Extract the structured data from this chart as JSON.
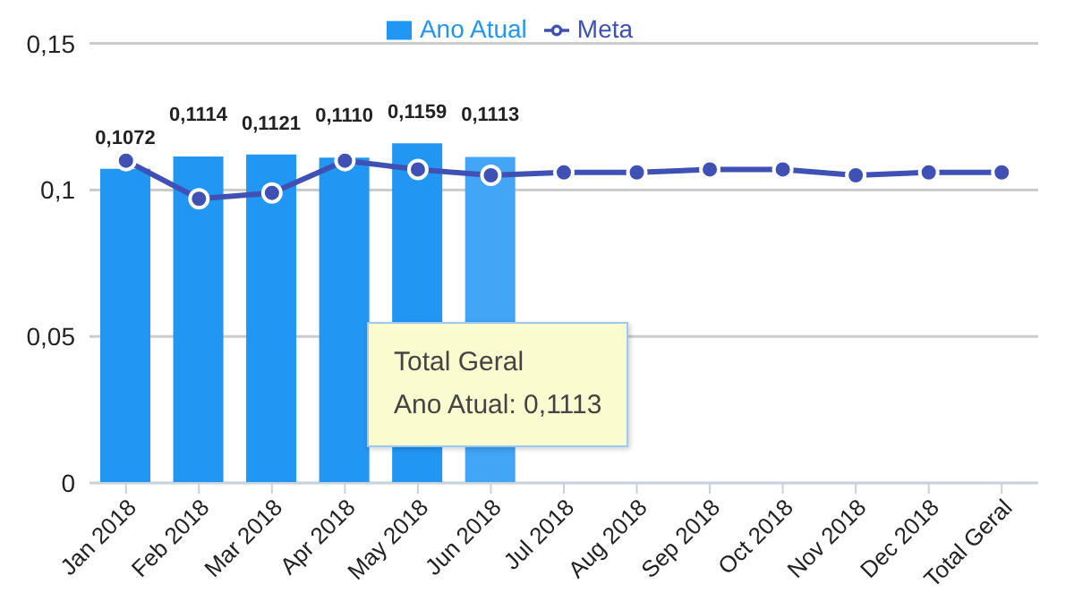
{
  "chart_data": {
    "type": "bar",
    "categories": [
      "Jan 2018",
      "Feb 2018",
      "Mar 2018",
      "Apr 2018",
      "May 2018",
      "Jun 2018",
      "Jul 2018",
      "Aug 2018",
      "Sep 2018",
      "Oct 2018",
      "Nov 2018",
      "Dec 2018",
      "Total Geral"
    ],
    "series": [
      {
        "name": "Ano Atual",
        "color": "#2196f3",
        "colors": [
          "#2196f3",
          "#2196f3",
          "#2196f3",
          "#2196f3",
          "#2196f3",
          "#42a5f5",
          null,
          null,
          null,
          null,
          null,
          null,
          null
        ],
        "values": [
          0.1072,
          0.1114,
          0.1121,
          0.111,
          0.1159,
          0.1113,
          null,
          null,
          null,
          null,
          null,
          null,
          null
        ],
        "value_labels": [
          "0,1072",
          "0,1114",
          "0,1121",
          "0,1110",
          "0,1159",
          "0,1113",
          null,
          null,
          null,
          null,
          null,
          null,
          null
        ]
      },
      {
        "name": "Meta",
        "type": "line",
        "color": "#3f51b5",
        "marker": "circle",
        "values": [
          0.11,
          0.097,
          0.099,
          0.11,
          0.107,
          0.105,
          0.106,
          0.106,
          0.107,
          0.107,
          0.105,
          0.106,
          0.106
        ]
      }
    ],
    "ylim": [
      0,
      0.15
    ],
    "yticks": [
      {
        "value": 0,
        "label": "0"
      },
      {
        "value": 0.05,
        "label": "0,05"
      },
      {
        "value": 0.1,
        "label": "0,1"
      },
      {
        "value": 0.15,
        "label": "0,15"
      }
    ],
    "grid": "y",
    "legend": "top",
    "annotations": [
      "Total Geral",
      "Ano Atual: 0,1113"
    ]
  }
}
